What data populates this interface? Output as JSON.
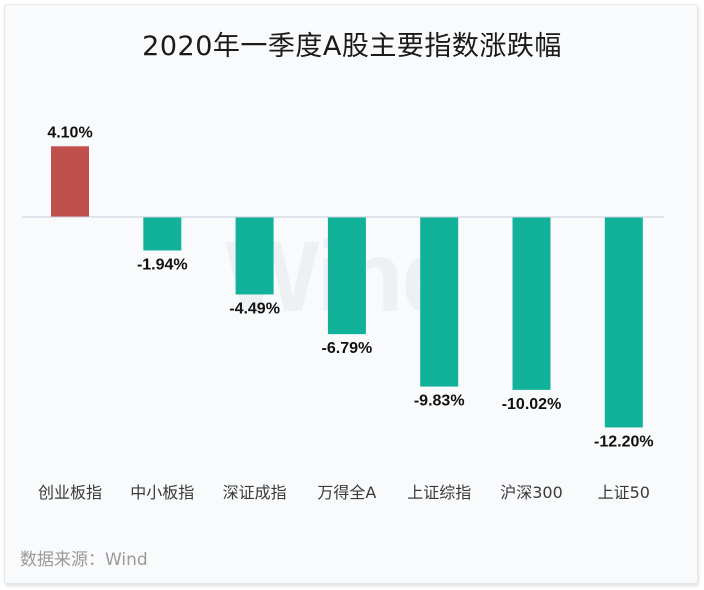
{
  "chart_data": {
    "type": "bar",
    "title": "2020年一季度A股主要指数涨跌幅",
    "categories": [
      "创业板指",
      "中小板指",
      "深证成指",
      "万得全A",
      "上证综指",
      "沪深300",
      "上证50"
    ],
    "values": [
      4.1,
      -1.94,
      -4.49,
      -6.79,
      -9.83,
      -10.02,
      -12.2
    ],
    "labels": [
      "4.10%",
      "-1.94%",
      "-4.49%",
      "-6.79%",
      "-9.83%",
      "-10.02%",
      "-12.20%"
    ],
    "xlabel": "",
    "ylabel": "",
    "unit": "%",
    "colors": {
      "positive": "#c0504d",
      "negative": "#12b29a",
      "baseline": "#c9cdd9"
    }
  },
  "watermark": "Wind",
  "source": "数据来源：Wind"
}
